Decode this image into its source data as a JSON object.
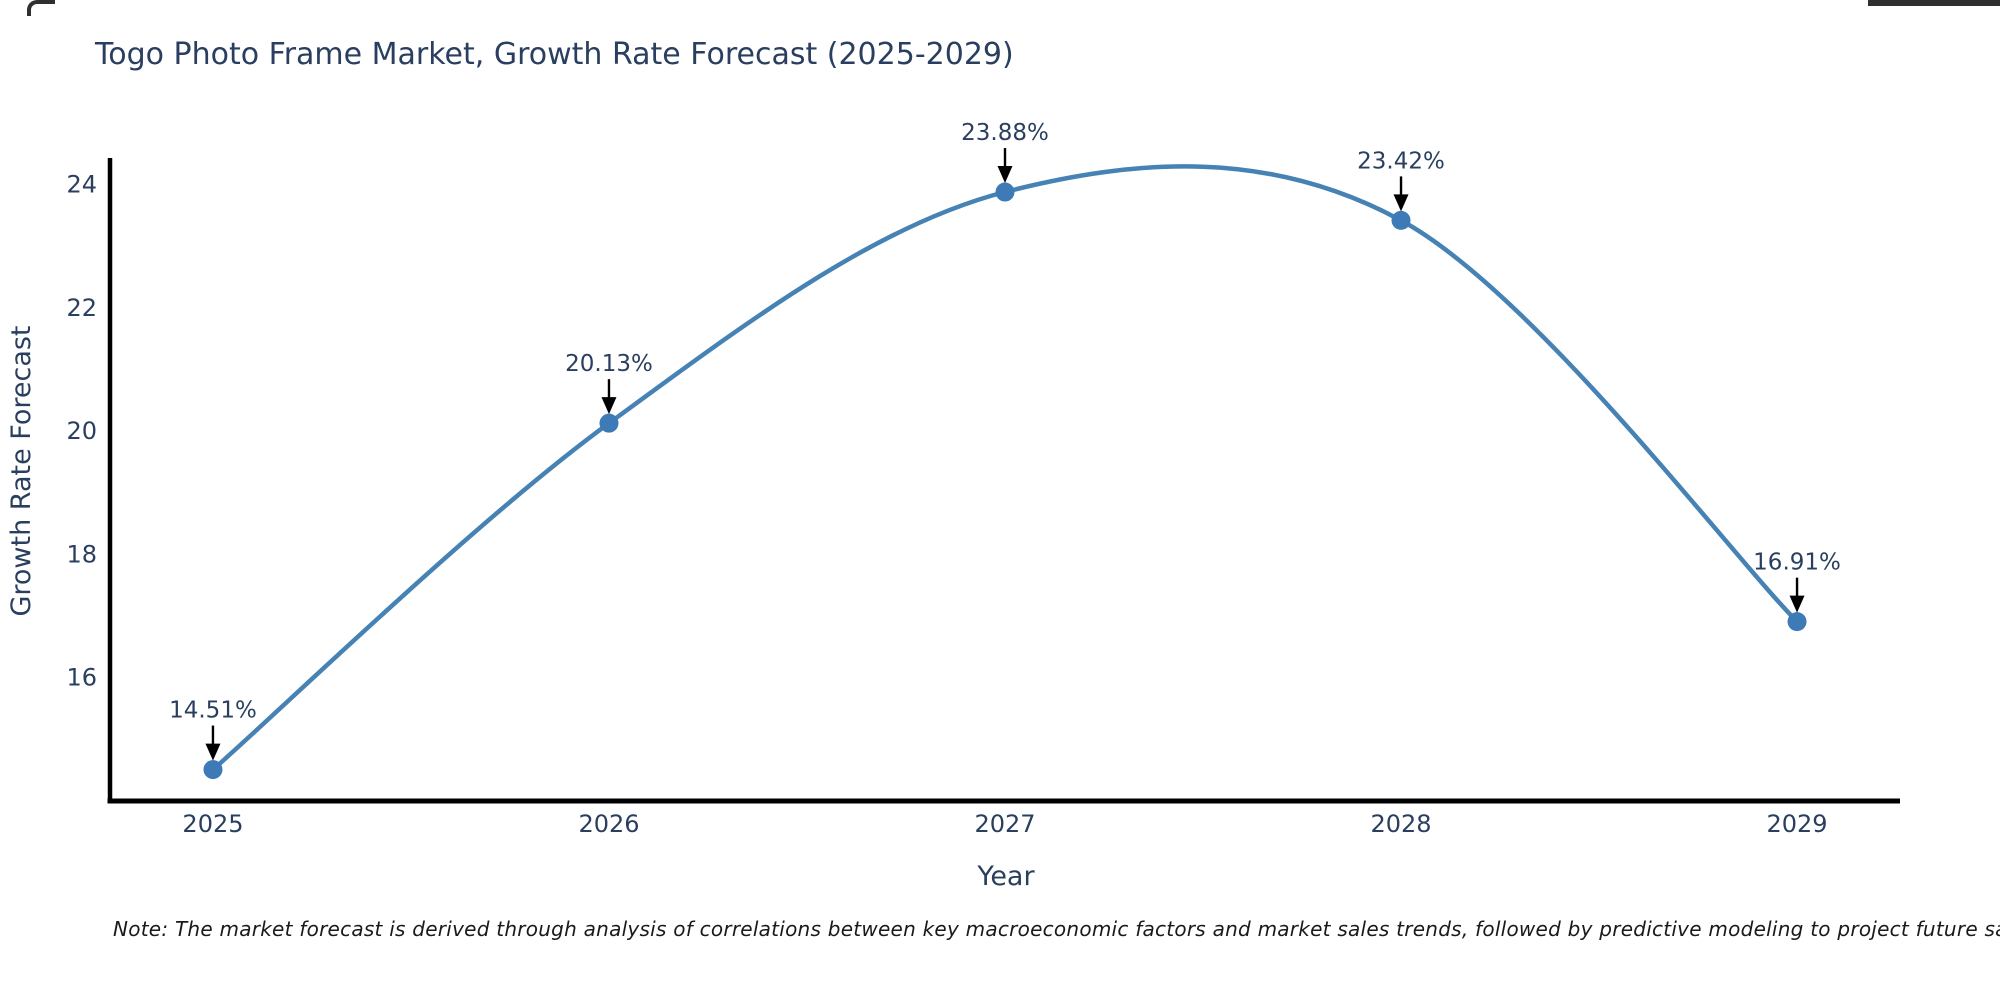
{
  "page": {
    "note": "Note: The market forecast is derived through analysis of correlations between key macroeconomic factors and market sales trends, followed by predictive modeling to project future sales"
  },
  "chart_data": {
    "type": "line",
    "title": "Togo Photo Frame Market, Growth Rate Forecast (2025-2029)",
    "xlabel": "Year",
    "ylabel": "Growth Rate Forecast",
    "categories": [
      "2025",
      "2026",
      "2027",
      "2028",
      "2029"
    ],
    "x_years": [
      2025,
      2026,
      2027,
      2028,
      2029
    ],
    "values": [
      14.51,
      20.13,
      23.88,
      23.42,
      16.91
    ],
    "point_labels": [
      "14.51%",
      "20.13%",
      "23.88%",
      "23.42%",
      "16.91%"
    ],
    "yticks": [
      16,
      18,
      20,
      22,
      24
    ],
    "xticks": [
      "2025",
      "2026",
      "2027",
      "2028",
      "2029"
    ],
    "ylim": [
      14.0,
      24.4
    ],
    "xlim_years": [
      2024.74,
      2029.26
    ],
    "line_shape": "spline",
    "markers": true,
    "grid": false,
    "legend": "none",
    "colors": {
      "line": "#4682b4",
      "marker": "#3d7ab6",
      "axis_line": "#000000",
      "text": "#2a3f5f",
      "annotation_text": "#2a3f5f",
      "annotation_arrow": "#000000",
      "note_text": "#1a1a1a",
      "background": "#ffffff"
    }
  }
}
